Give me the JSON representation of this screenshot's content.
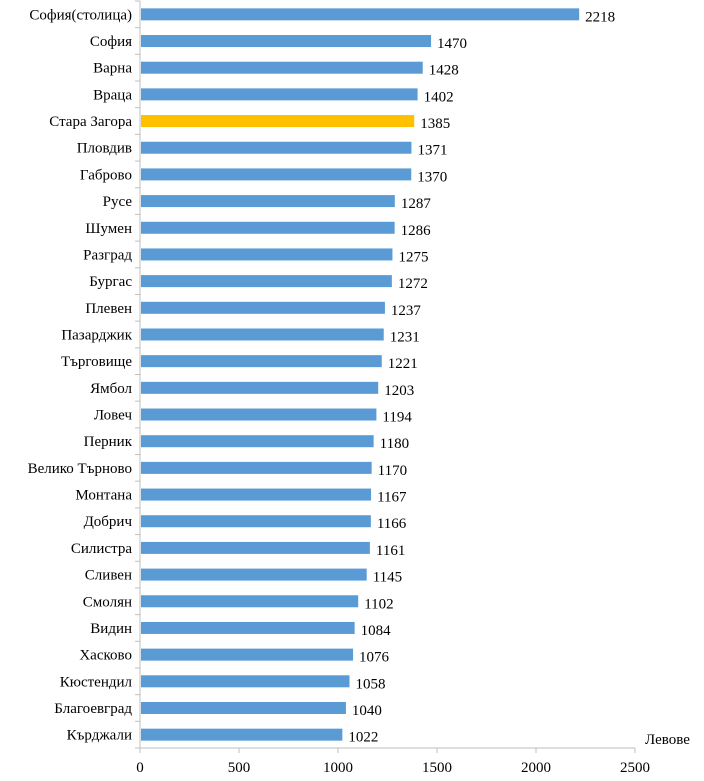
{
  "chart_data": {
    "type": "bar",
    "orientation": "horizontal",
    "title": "",
    "xlabel": "Левове",
    "ylabel": "",
    "xlim": [
      0,
      2500
    ],
    "x_ticks": [
      0,
      500,
      1000,
      1500,
      2000,
      2500
    ],
    "grid": false,
    "colors": {
      "default": "#5B9BD5",
      "highlight": "#FFC000"
    },
    "highlight_category": "Стара Загора",
    "categories": [
      "София(столица)",
      "София",
      "Варна",
      "Враца",
      "Стара Загора",
      "Пловдив",
      "Габрово",
      "Русе",
      "Шумен",
      "Разград",
      "Бургас",
      "Плевен",
      "Пазарджик",
      "Търговище",
      "Ямбол",
      "Ловеч",
      "Перник",
      "Велико Търново",
      "Монтана",
      "Добрич",
      "Силистра",
      "Сливен",
      "Смолян",
      "Видин",
      "Хасково",
      "Кюстендил",
      "Благоевград",
      "Кърджали"
    ],
    "values": [
      2218,
      1470,
      1428,
      1402,
      1385,
      1371,
      1370,
      1287,
      1286,
      1275,
      1272,
      1237,
      1231,
      1221,
      1203,
      1194,
      1180,
      1170,
      1167,
      1166,
      1161,
      1145,
      1102,
      1084,
      1076,
      1058,
      1040,
      1022
    ]
  }
}
